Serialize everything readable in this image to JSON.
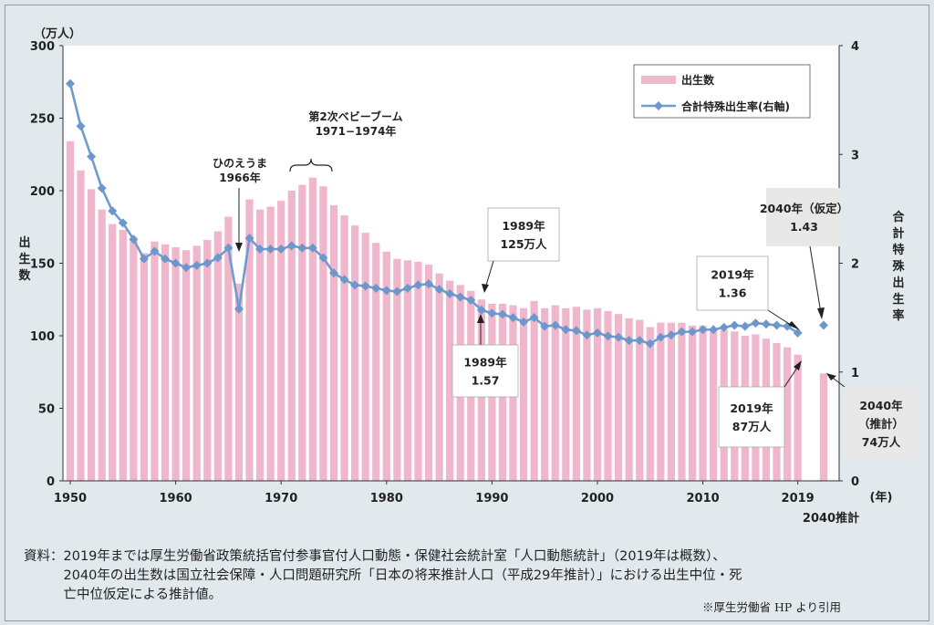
{
  "chart_data": {
    "type": "bar+line",
    "left_axis_unit": "（万人）",
    "right_axis_unit": "",
    "xlabel_unit": "(年)",
    "ylabel_left": "出生数",
    "ylabel_right": "合計特殊出生率",
    "ylim_left": [
      0,
      300
    ],
    "ylim_right": [
      0,
      4
    ],
    "yticks_left": [
      "0",
      "50",
      "100",
      "150",
      "200",
      "250",
      "300"
    ],
    "yticks_right": [
      "0",
      "1",
      "2",
      "3",
      "4"
    ],
    "xticks": [
      "1950",
      "1960",
      "1970",
      "1980",
      "1990",
      "2000",
      "2010",
      "2019"
    ],
    "xtick_extra": "2040推計",
    "legend": {
      "position": "top-right",
      "bar_label": "出生数",
      "line_label": "合計特殊出生率(右軸)"
    },
    "colors": {
      "bar": "#f0b6cb",
      "line": "#6f9bd1",
      "marker": "#6b97cc"
    },
    "years": [
      1950,
      1951,
      1952,
      1953,
      1954,
      1955,
      1956,
      1957,
      1958,
      1959,
      1960,
      1961,
      1962,
      1963,
      1964,
      1965,
      1966,
      1967,
      1968,
      1969,
      1970,
      1971,
      1972,
      1973,
      1974,
      1975,
      1976,
      1977,
      1978,
      1979,
      1980,
      1981,
      1982,
      1983,
      1984,
      1985,
      1986,
      1987,
      1988,
      1989,
      1990,
      1991,
      1992,
      1993,
      1994,
      1995,
      1996,
      1997,
      1998,
      1999,
      2000,
      2001,
      2002,
      2003,
      2004,
      2005,
      2006,
      2007,
      2008,
      2009,
      2010,
      2011,
      2012,
      2013,
      2014,
      2015,
      2016,
      2017,
      2018,
      2019
    ],
    "births": [
      234,
      214,
      201,
      187,
      177,
      173,
      167,
      157,
      165,
      163,
      161,
      159,
      162,
      166,
      172,
      182,
      136,
      194,
      187,
      189,
      193,
      200,
      204,
      209,
      203,
      190,
      183,
      176,
      171,
      164,
      158,
      153,
      152,
      151,
      149,
      143,
      138,
      135,
      131,
      125,
      122,
      122,
      121,
      119,
      124,
      119,
      121,
      119,
      120,
      118,
      119,
      117,
      115,
      112,
      111,
      106,
      109,
      109,
      109,
      107,
      107,
      105,
      104,
      103,
      100,
      101,
      98,
      95,
      92,
      87
    ],
    "tfr": [
      3.65,
      3.26,
      2.98,
      2.69,
      2.48,
      2.37,
      2.22,
      2.04,
      2.11,
      2.04,
      2.0,
      1.96,
      1.98,
      2.0,
      2.05,
      2.14,
      1.58,
      2.23,
      2.13,
      2.13,
      2.13,
      2.16,
      2.14,
      2.14,
      2.05,
      1.91,
      1.85,
      1.8,
      1.79,
      1.77,
      1.75,
      1.74,
      1.77,
      1.8,
      1.81,
      1.76,
      1.72,
      1.69,
      1.66,
      1.57,
      1.54,
      1.53,
      1.5,
      1.46,
      1.5,
      1.42,
      1.43,
      1.39,
      1.38,
      1.34,
      1.36,
      1.33,
      1.32,
      1.29,
      1.29,
      1.26,
      1.32,
      1.34,
      1.37,
      1.37,
      1.39,
      1.39,
      1.41,
      1.43,
      1.42,
      1.45,
      1.44,
      1.43,
      1.42,
      1.36
    ],
    "projection_2040": {
      "label": "2040推計",
      "births": 74,
      "tfr": 1.43
    },
    "annotations": {
      "hinoeuma": "ひのえうま",
      "hinoeuma_year": "1966年",
      "babyboom": "第2次ベビーブーム",
      "babyboom_years": "1971−1974年",
      "c1989_births_year": "1989年",
      "c1989_births_val": "125万人",
      "c1989_tfr_year": "1989年",
      "c1989_tfr_val": "1.57",
      "c2019_tfr_year": "2019年",
      "c2019_tfr_val": "1.36",
      "c2019_births_year": "2019年",
      "c2019_births_val": "87万人",
      "c2040_tfr_year": "2040年（仮定）",
      "c2040_tfr_val": "1.43",
      "c2040_births_year": "2040年",
      "c2040_births_note": "（推計）",
      "c2040_births_val": "74万人"
    }
  },
  "source": {
    "line1": "資料：2019年までは厚生労働省政策統括官付参事官付人口動態・保健社会統計室「人口動態統計」（2019年は概数）、",
    "line2": "　　　2040年の出生数は国立社会保障・人口問題研究所「日本の将来推計人口（平成29年推計）」における出生中位・死",
    "line3": "　　　亡中位仮定による推計値。"
  },
  "credit": "※厚生労働省 HP より引用"
}
